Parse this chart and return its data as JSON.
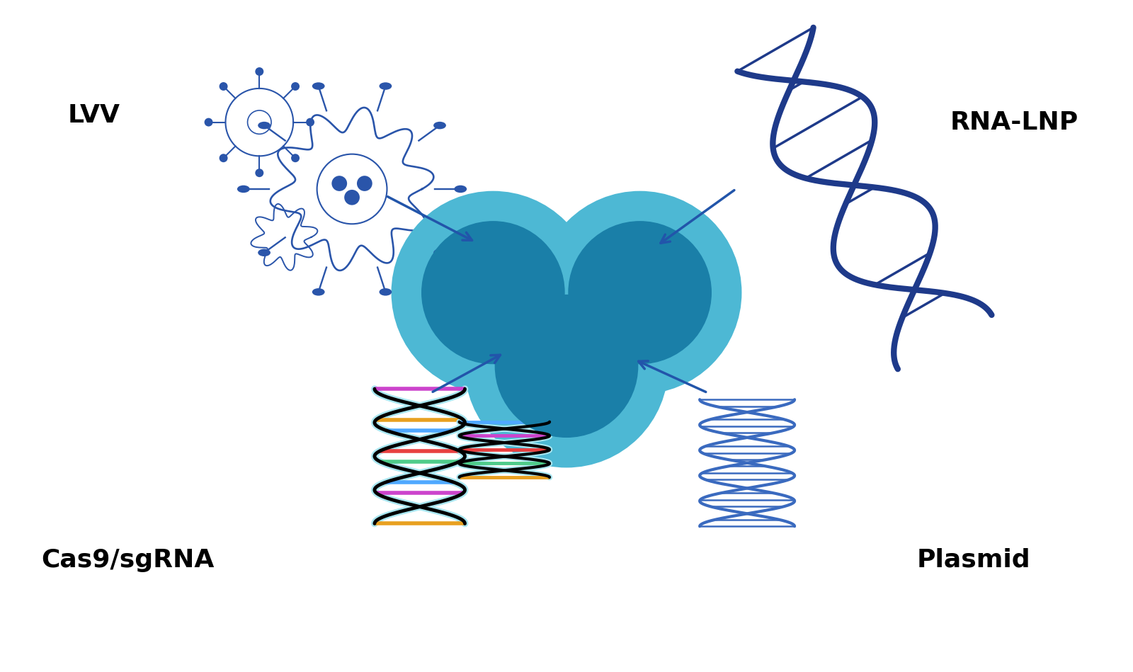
{
  "background_color": "#ffffff",
  "cell_color_outer": "#4db8d4",
  "cell_color_inner": "#1a7fa8",
  "arrow_color": "#2255aa",
  "label_lvv": "LVV",
  "label_rna": "RNA-LNP",
  "label_crispr": "Cas9/sgRNA",
  "label_plasmid": "Plasmid",
  "label_fontsize": 26,
  "label_fontweight": "bold",
  "virus_color": "#2a55aa",
  "rna_color": "#1e3a8a",
  "plasmid_color": "#3a6abf",
  "figsize": [
    16.0,
    9.49
  ],
  "dpi": 100
}
